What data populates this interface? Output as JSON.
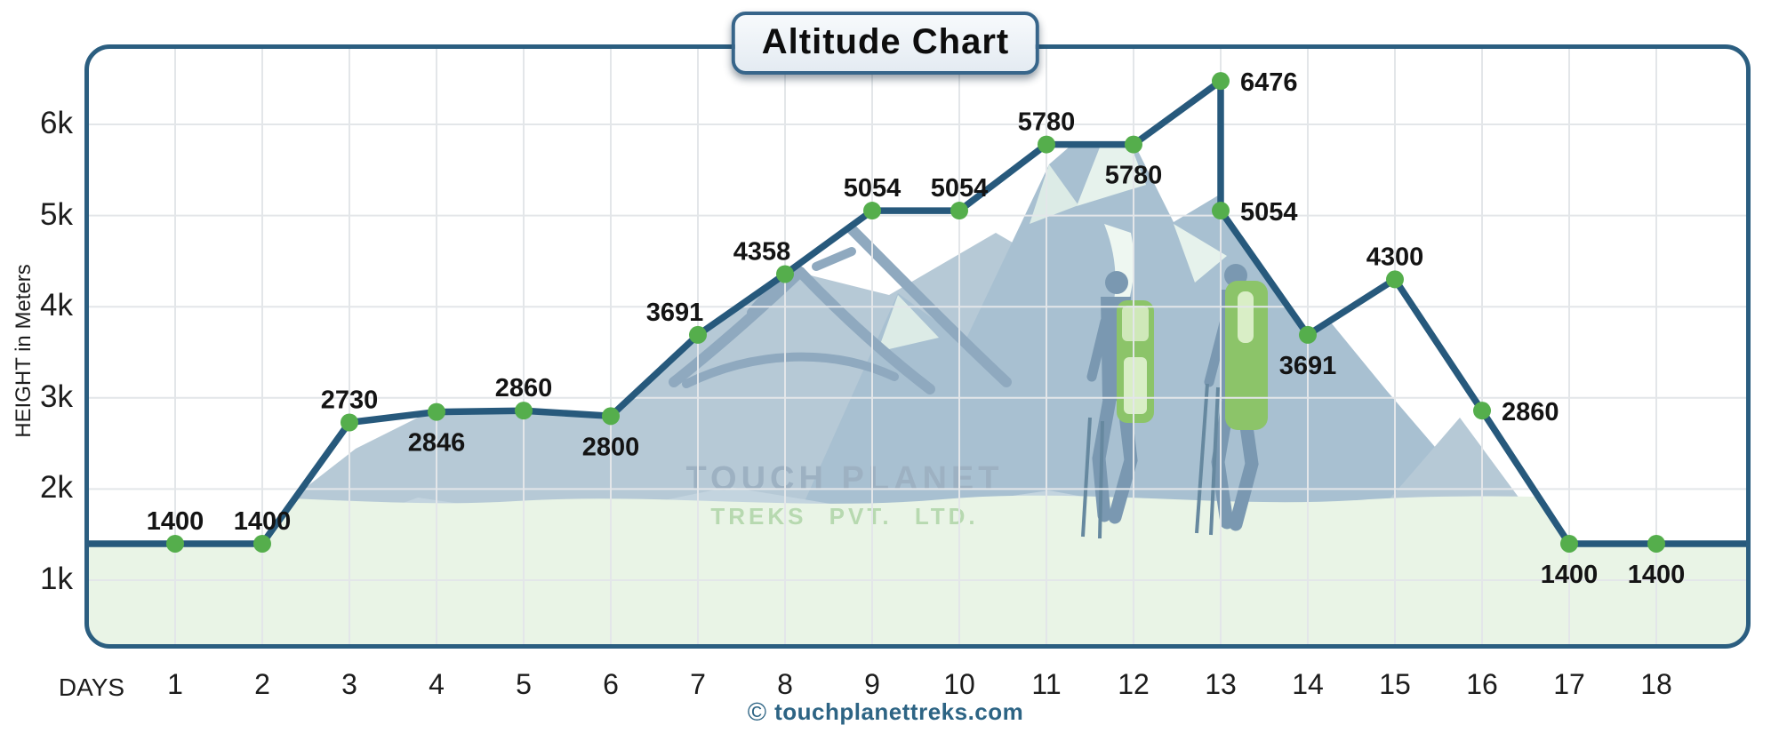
{
  "title": "Altitude Chart",
  "footer": {
    "copyright_symbol": "©",
    "site": "touchplanettreks.com"
  },
  "watermark": {
    "brand_line1": "TOUCH PLANET",
    "brand_line2": "TREKS PVT. LTD."
  },
  "chart_data": {
    "type": "line",
    "title": "Altitude Chart",
    "xlabel": "DAYS",
    "ylabel": "HEIGHT in Meters",
    "x_tick_labels": [
      "1",
      "2",
      "3",
      "4",
      "5",
      "6",
      "7",
      "8",
      "9",
      "10",
      "11",
      "12",
      "13",
      "14",
      "15",
      "16",
      "17",
      "18"
    ],
    "y_tick_labels": [
      "1k",
      "2k",
      "3k",
      "4k",
      "5k",
      "6k"
    ],
    "y_tick_values": [
      1000,
      2000,
      3000,
      4000,
      5000,
      6000
    ],
    "ylim": [
      600,
      6800
    ],
    "grid": true,
    "legend": "none",
    "line_color": "#27597c",
    "marker_color": "#55ae4c",
    "label_color": "#141414",
    "grid_color": "#e3e6e9",
    "border_color": "#2b5e80",
    "line_extends_to_plot_edges": true,
    "series": [
      {
        "name": "Altitude (m)",
        "points": [
          {
            "day": 1,
            "value": 1400,
            "label_pos": "above"
          },
          {
            "day": 2,
            "value": 1400,
            "label_pos": "above"
          },
          {
            "day": 3,
            "value": 2730,
            "label_pos": "above"
          },
          {
            "day": 4,
            "value": 2846,
            "label_pos": "below"
          },
          {
            "day": 5,
            "value": 2860,
            "label_pos": "above"
          },
          {
            "day": 6,
            "value": 2800,
            "label_pos": "below"
          },
          {
            "day": 7,
            "value": 3691,
            "label_pos": "above-left"
          },
          {
            "day": 8,
            "value": 4358,
            "label_pos": "above-left"
          },
          {
            "day": 9,
            "value": 5054,
            "label_pos": "above"
          },
          {
            "day": 10,
            "value": 5054,
            "label_pos": "above"
          },
          {
            "day": 11,
            "value": 5780,
            "label_pos": "above"
          },
          {
            "day": 12,
            "value": 5780,
            "label_pos": "below"
          },
          {
            "day": 13,
            "value": 6476,
            "label_pos": "right"
          },
          {
            "day": 13,
            "value": 5054,
            "label_pos": "right"
          },
          {
            "day": 14,
            "value": 3691,
            "label_pos": "below"
          },
          {
            "day": 15,
            "value": 4300,
            "label_pos": "above"
          },
          {
            "day": 16,
            "value": 2860,
            "label_pos": "right"
          },
          {
            "day": 17,
            "value": 1400,
            "label_pos": "below"
          },
          {
            "day": 18,
            "value": 1400,
            "label_pos": "below"
          }
        ]
      }
    ]
  }
}
